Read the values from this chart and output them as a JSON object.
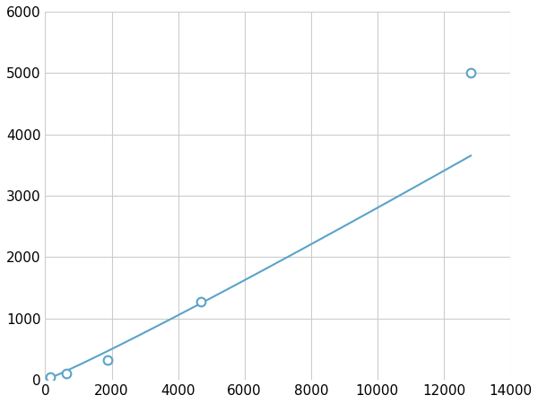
{
  "x_points": [
    156,
    625,
    1875,
    4688,
    12813
  ],
  "y_points": [
    50,
    100,
    320,
    1280,
    5000
  ],
  "line_color": "#5ba3c9",
  "marker_color": "#5ba3c9",
  "marker_size": 7,
  "xlim": [
    0,
    14000
  ],
  "ylim": [
    0,
    6000
  ],
  "xticks": [
    0,
    2000,
    4000,
    6000,
    8000,
    10000,
    12000,
    14000
  ],
  "yticks": [
    0,
    1000,
    2000,
    3000,
    4000,
    5000,
    6000
  ],
  "grid_color": "#cccccc",
  "background_color": "#ffffff",
  "tick_label_fontsize": 11,
  "figsize": [
    6.0,
    4.5
  ],
  "dpi": 100
}
